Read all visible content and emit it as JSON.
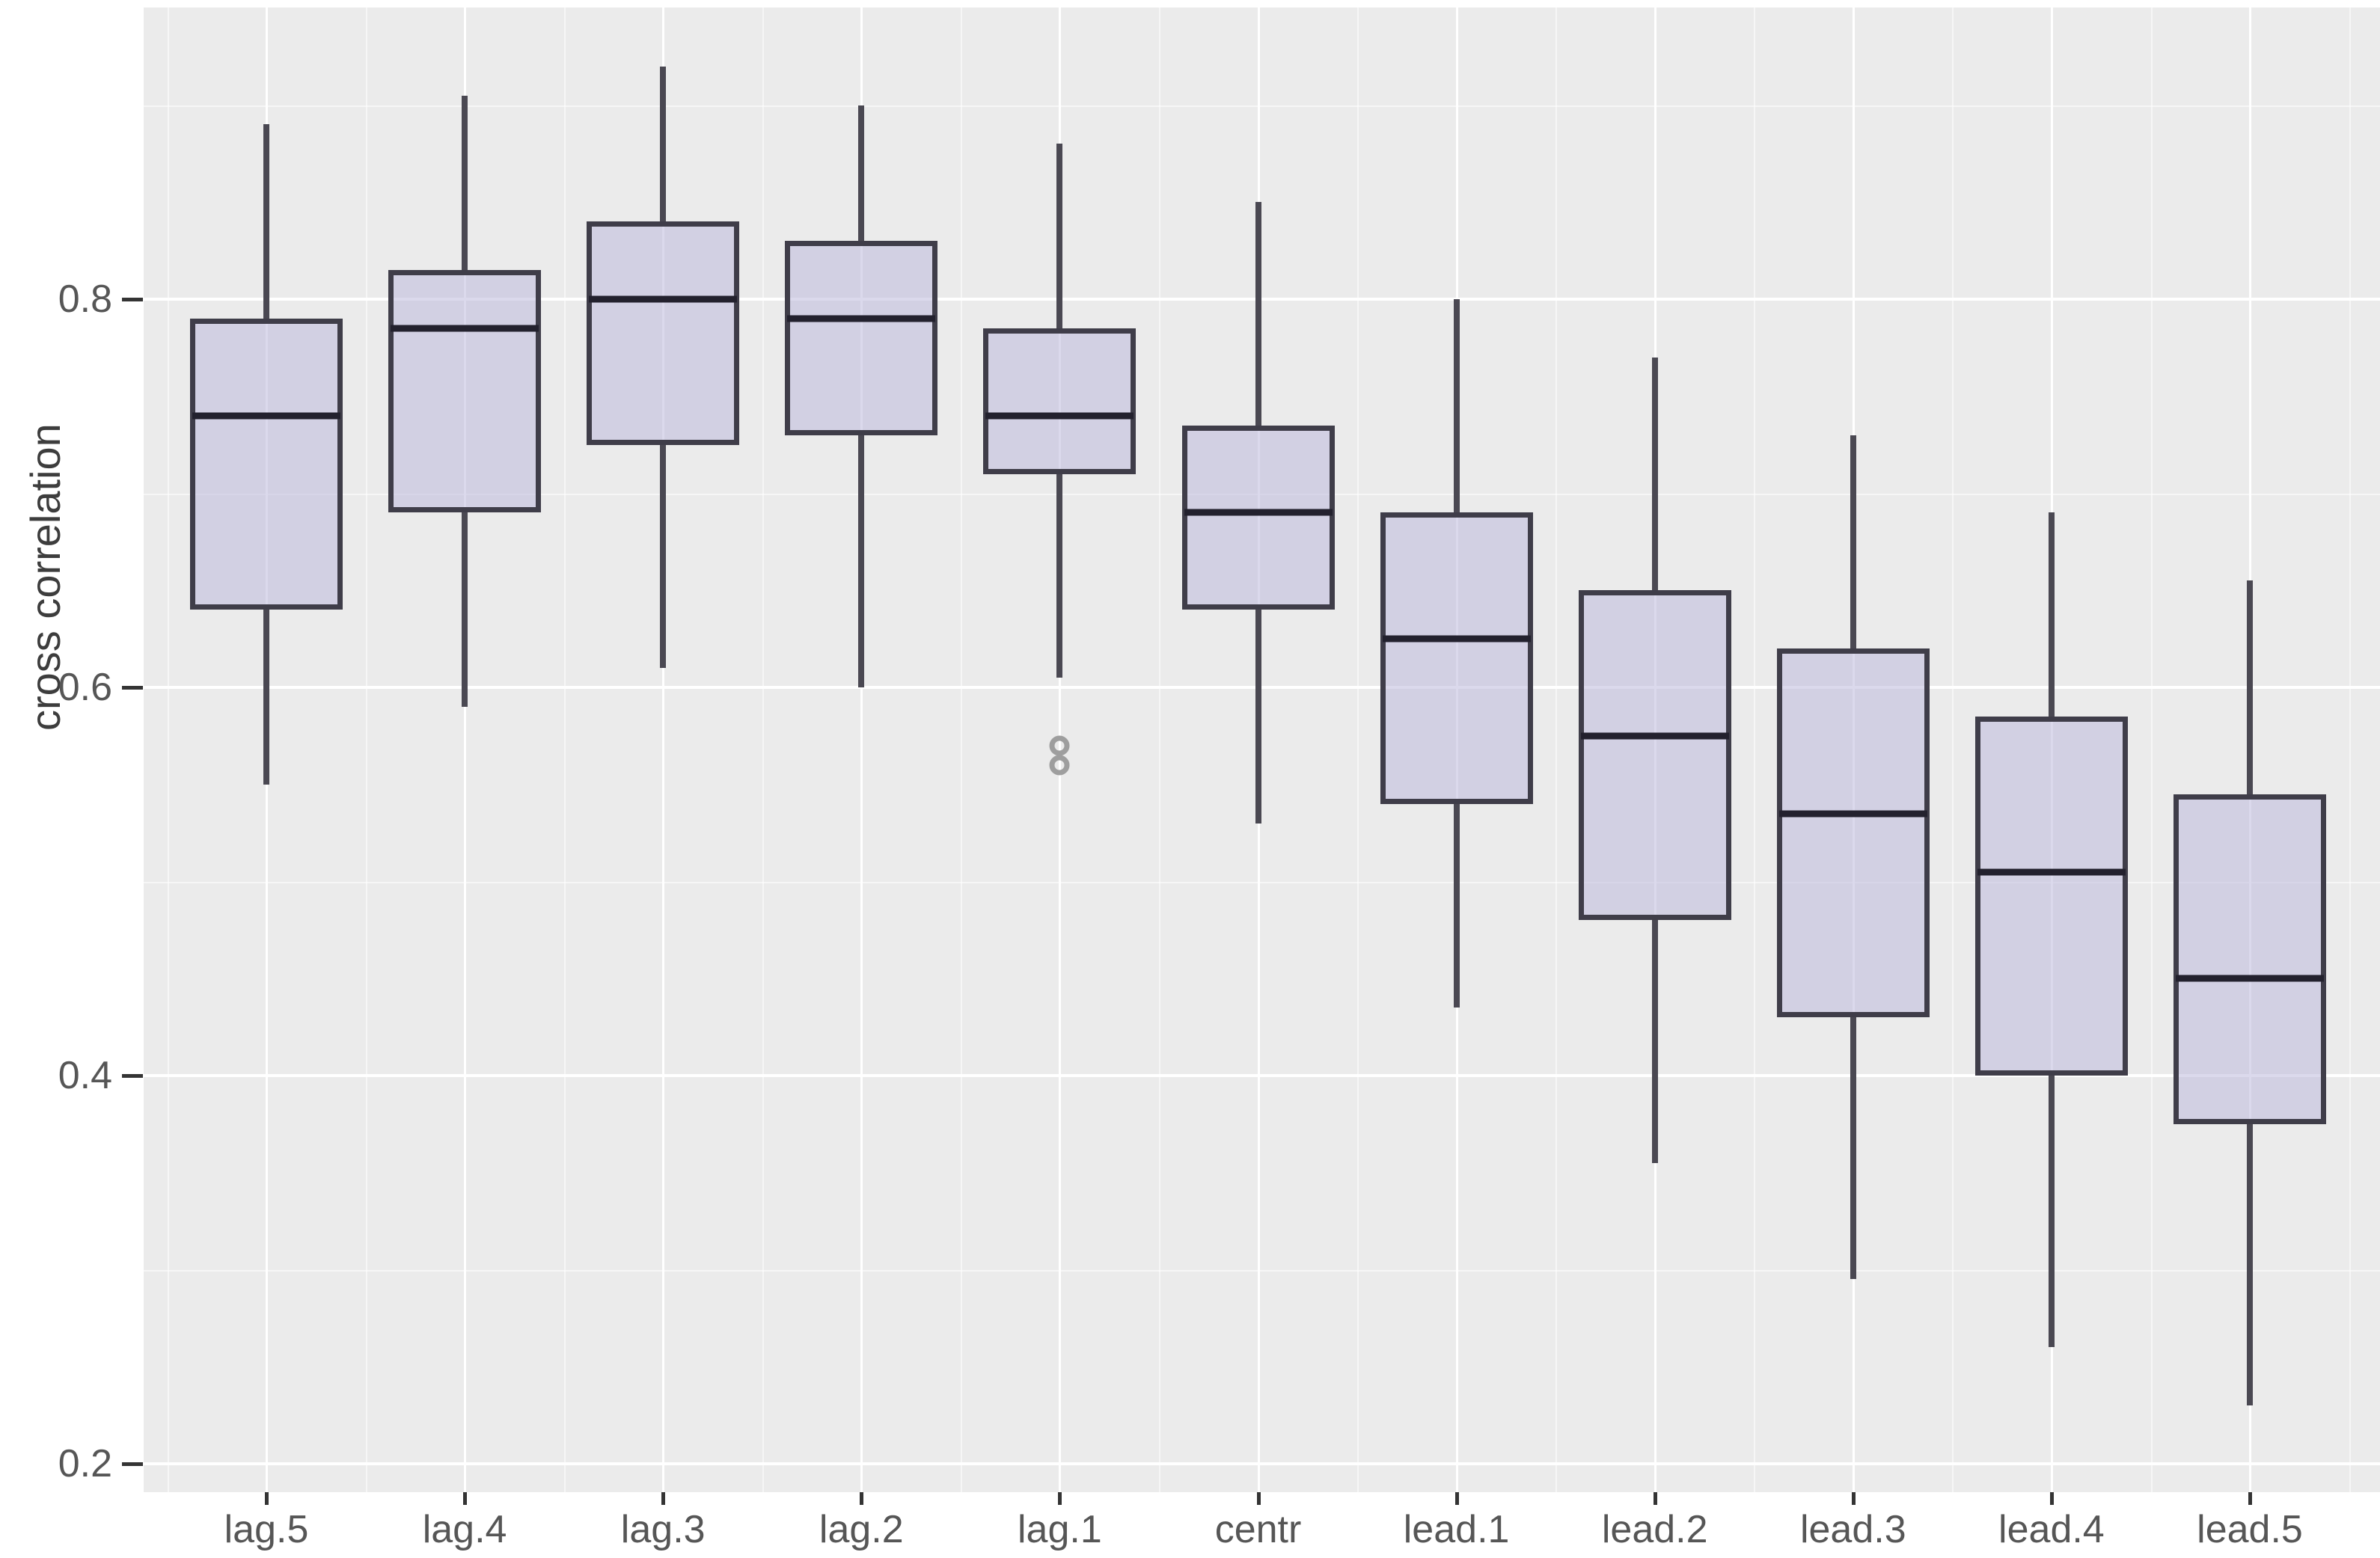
{
  "chart_data": {
    "type": "boxplot",
    "title": "",
    "xlabel": "",
    "ylabel": "cross correlation",
    "ylim": [
      0.175,
      0.95
    ],
    "y_ticks": [
      0.2,
      0.4,
      0.6,
      0.8
    ],
    "y_tick_labels": [
      "0.2",
      "0.4",
      "0.6",
      "0.8"
    ],
    "y_minor_ticks": [
      0.3,
      0.5,
      0.7,
      0.9
    ],
    "grid": "major-and-minor",
    "legend": "none",
    "categories": [
      "lag.5",
      "lag.4",
      "lag.3",
      "lag.2",
      "lag.1",
      "centr",
      "lead.1",
      "lead.2",
      "lead.3",
      "lead.4",
      "lead.5"
    ],
    "series": [
      {
        "category": "lag.5",
        "whisker_low": 0.55,
        "q1": 0.64,
        "median": 0.74,
        "q3": 0.79,
        "whisker_high": 0.89,
        "outliers": []
      },
      {
        "category": "lag.4",
        "whisker_low": 0.59,
        "q1": 0.69,
        "median": 0.785,
        "q3": 0.815,
        "whisker_high": 0.905,
        "outliers": []
      },
      {
        "category": "lag.3",
        "whisker_low": 0.61,
        "q1": 0.725,
        "median": 0.8,
        "q3": 0.84,
        "whisker_high": 0.92,
        "outliers": []
      },
      {
        "category": "lag.2",
        "whisker_low": 0.6,
        "q1": 0.73,
        "median": 0.79,
        "q3": 0.83,
        "whisker_high": 0.9,
        "outliers": []
      },
      {
        "category": "lag.1",
        "whisker_low": 0.605,
        "q1": 0.71,
        "median": 0.74,
        "q3": 0.785,
        "whisker_high": 0.88,
        "outliers": [
          0.57,
          0.56
        ]
      },
      {
        "category": "centr",
        "whisker_low": 0.53,
        "q1": 0.64,
        "median": 0.69,
        "q3": 0.735,
        "whisker_high": 0.85,
        "outliers": []
      },
      {
        "category": "lead.1",
        "whisker_low": 0.435,
        "q1": 0.54,
        "median": 0.625,
        "q3": 0.69,
        "whisker_high": 0.8,
        "outliers": []
      },
      {
        "category": "lead.2",
        "whisker_low": 0.355,
        "q1": 0.48,
        "median": 0.575,
        "q3": 0.65,
        "whisker_high": 0.77,
        "outliers": []
      },
      {
        "category": "lead.3",
        "whisker_low": 0.295,
        "q1": 0.43,
        "median": 0.535,
        "q3": 0.62,
        "whisker_high": 0.73,
        "outliers": []
      },
      {
        "category": "lead.4",
        "whisker_low": 0.26,
        "q1": 0.4,
        "median": 0.505,
        "q3": 0.585,
        "whisker_high": 0.69,
        "outliers": []
      },
      {
        "category": "lead.5",
        "whisker_low": 0.23,
        "q1": 0.375,
        "median": 0.45,
        "q3": 0.545,
        "whisker_high": 0.655,
        "outliers": []
      }
    ],
    "colors": {
      "panel_background": "#ebebeb",
      "grid_line": "#ffffff",
      "box_fill": "#cfcce4",
      "box_border": "#3f3d49",
      "median_line": "#23212e",
      "whisker": "#4a4852",
      "outlier_stroke": "#9e9e9e",
      "axis_text": "#565656",
      "axis_title": "#3d3d3d",
      "tick_mark": "#343434"
    }
  }
}
